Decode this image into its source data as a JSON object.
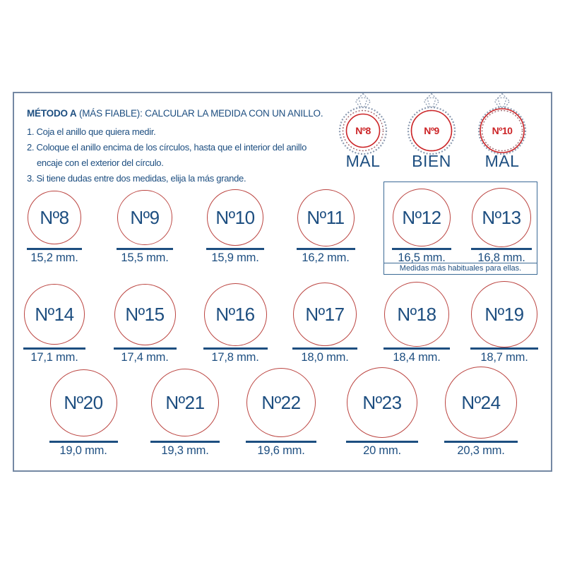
{
  "header": {
    "title_bold": "MÉTODO A",
    "title_rest": " (MÁS FIABLE): CALCULAR LA MEDIDA CON UN ANILLO.",
    "instructions": [
      {
        "text": "1. Coja el anillo que quiera medir.",
        "indent": false
      },
      {
        "text": "2. Coloque el anillo encima de los círculos, hasta que el interior del anillo",
        "indent": false
      },
      {
        "text": "encaje con el exterior del círculo.",
        "indent": true
      },
      {
        "text": "3. Si tiene dudas entre dos medidas, elija la más grande.",
        "indent": false
      }
    ]
  },
  "ring_examples": [
    {
      "size_label": "Nº8",
      "verdict": "MAL",
      "fit": "small"
    },
    {
      "size_label": "Nº9",
      "verdict": "BIEN",
      "fit": "good"
    },
    {
      "size_label": "Nº10",
      "verdict": "MAL",
      "fit": "big"
    }
  ],
  "highlight_box": {
    "caption": "Medidas más habituales para ellas."
  },
  "sizes": [
    {
      "label": "Nº8",
      "mm": 15.2,
      "mm_text": "15,2 mm."
    },
    {
      "label": "Nº9",
      "mm": 15.5,
      "mm_text": "15,5 mm."
    },
    {
      "label": "Nº10",
      "mm": 15.9,
      "mm_text": "15,9 mm."
    },
    {
      "label": "Nº11",
      "mm": 16.2,
      "mm_text": "16,2 mm."
    },
    {
      "label": "Nº12",
      "mm": 16.5,
      "mm_text": "16,5 mm."
    },
    {
      "label": "Nº13",
      "mm": 16.8,
      "mm_text": "16,8 mm."
    },
    {
      "label": "Nº14",
      "mm": 17.1,
      "mm_text": "17,1 mm."
    },
    {
      "label": "Nº15",
      "mm": 17.4,
      "mm_text": "17,4 mm."
    },
    {
      "label": "Nº16",
      "mm": 17.8,
      "mm_text": "17,8 mm."
    },
    {
      "label": "Nº17",
      "mm": 18.0,
      "mm_text": "18,0 mm."
    },
    {
      "label": "Nº18",
      "mm": 18.4,
      "mm_text": "18,4 mm."
    },
    {
      "label": "Nº19",
      "mm": 18.7,
      "mm_text": "18,7 mm."
    },
    {
      "label": "Nº20",
      "mm": 19.0,
      "mm_text": "19,0 mm."
    },
    {
      "label": "Nº21",
      "mm": 19.3,
      "mm_text": "19,3 mm."
    },
    {
      "label": "Nº22",
      "mm": 19.6,
      "mm_text": "19,6 mm."
    },
    {
      "label": "Nº23",
      "mm": 20.0,
      "mm_text": "20 mm."
    },
    {
      "label": "Nº24",
      "mm": 20.3,
      "mm_text": "20,3 mm."
    }
  ],
  "colors": {
    "blue": "#1d4e80",
    "circle_red": "#bb4440",
    "ring_label_red": "#cc2427",
    "band_gray": "#8b9ab0",
    "band_inner_maroon": "#9e666d",
    "sheet_border": "#7488a3",
    "box_border": "#3c6a96"
  }
}
